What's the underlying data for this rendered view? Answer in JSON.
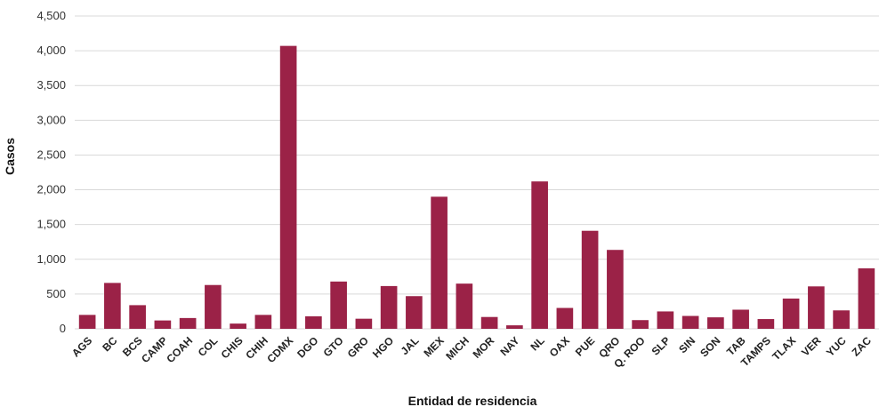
{
  "chart_data": {
    "type": "bar",
    "title": "",
    "xlabel": "Entidad de residencia",
    "ylabel": "Casos",
    "ylim": [
      0,
      4500
    ],
    "yticks": [
      "0",
      "500",
      "1,000",
      "1,500",
      "2,000",
      "2,500",
      "3,000",
      "3,500",
      "4,000",
      "4,500"
    ],
    "ytick_values": [
      0,
      500,
      1000,
      1500,
      2000,
      2500,
      3000,
      3500,
      4000,
      4500
    ],
    "grid": true,
    "legend": "none",
    "bar_color": "#9b2247",
    "categories": [
      "AGS",
      "BC",
      "BCS",
      "CAMP",
      "COAH",
      "COL",
      "CHIS",
      "CHIH",
      "CDMX",
      "DGO",
      "GTO",
      "GRO",
      "HGO",
      "JAL",
      "MEX",
      "MICH",
      "MOR",
      "NAY",
      "NL",
      "OAX",
      "PUE",
      "QRO",
      "Q. ROO",
      "SLP",
      "SIN",
      "SON",
      "TAB",
      "TAMPS",
      "TLAX",
      "VER",
      "YUC",
      "ZAC"
    ],
    "values": [
      200,
      660,
      340,
      120,
      155,
      630,
      75,
      200,
      4070,
      180,
      680,
      145,
      615,
      470,
      1900,
      650,
      170,
      50,
      2120,
      300,
      1410,
      1135,
      125,
      250,
      185,
      165,
      275,
      140,
      435,
      610,
      265,
      870
    ]
  }
}
